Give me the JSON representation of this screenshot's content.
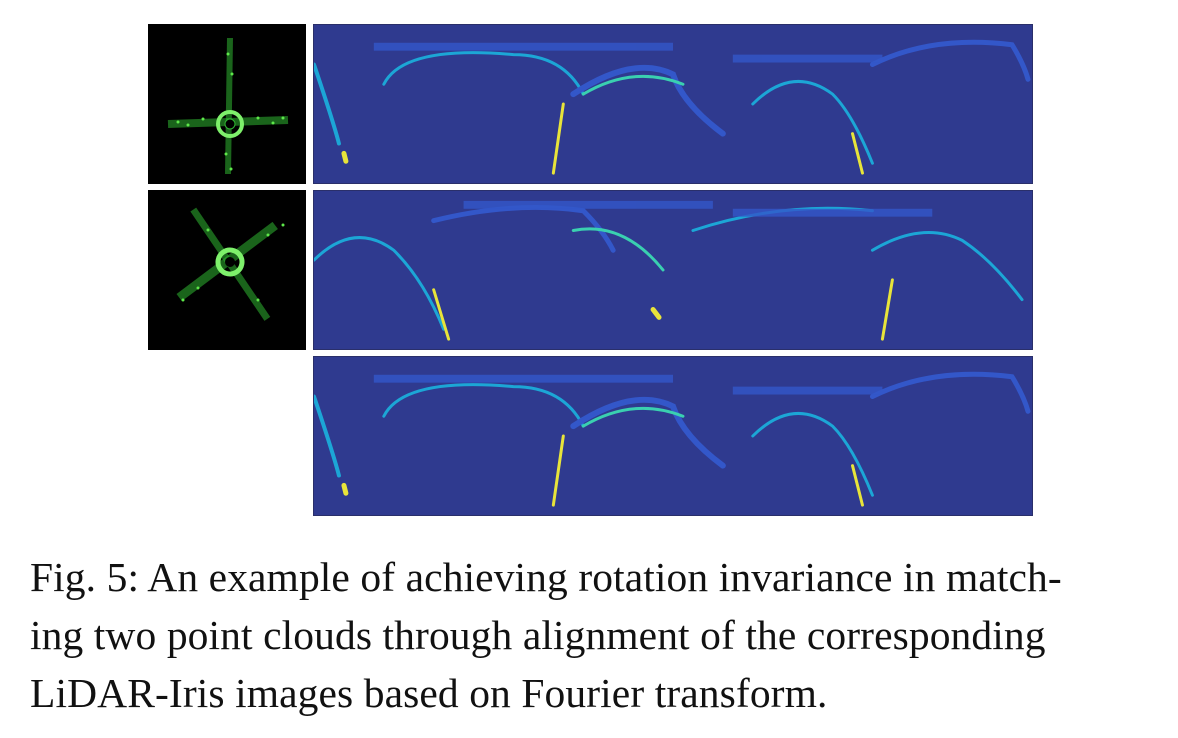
{
  "figure": {
    "caption": "Fig. 5: An example of achieving rotation invariance in matching two point clouds through alignment of the corresponding LiDAR-Iris images based on Fourier transform.",
    "caption_lines": [
      "Fig. 5: An example of achieving rotation invariance in match-",
      "ing two point clouds through alignment of the corresponding",
      "LiDAR-Iris images based on Fourier transform."
    ],
    "colors": {
      "iris_background": "#2f3a8f",
      "iris_low": "#3357c9",
      "iris_mid": "#1ca6d6",
      "iris_high": "#3ad0b0",
      "iris_peak": "#e8e43a",
      "pointcloud_background": "#000000",
      "pointcloud_points": "#36d13a"
    },
    "panels": [
      {
        "kind": "point-cloud",
        "rotation_deg": 0
      },
      {
        "kind": "iris-image",
        "shift": 0
      },
      {
        "kind": "point-cloud",
        "rotation_deg": -35
      },
      {
        "kind": "iris-image",
        "shift": 0.3
      },
      {
        "kind": "iris-image",
        "shift": 0
      }
    ]
  }
}
